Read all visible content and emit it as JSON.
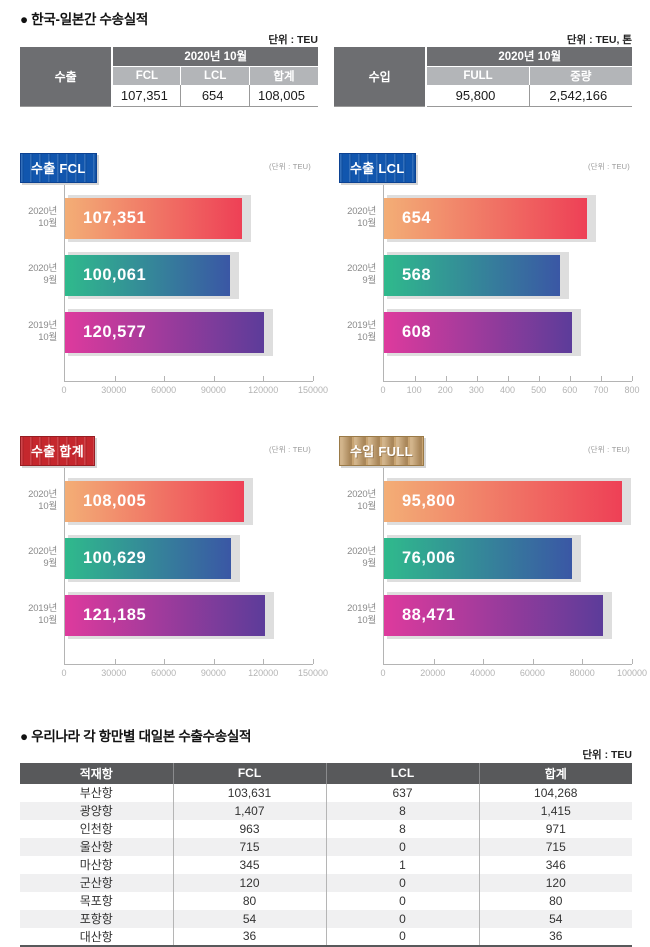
{
  "page": {
    "section1_title": "● 한국-일본간 수송실적",
    "section2_title": "● 우리나라 각 항만별 대일본 수출수송실적"
  },
  "summary_tables": {
    "export": {
      "unit": "단위 : TEU",
      "row_label": "수출",
      "period": "2020년 10월",
      "columns": [
        "FCL",
        "LCL",
        "합계"
      ],
      "values": [
        "107,351",
        "654",
        "108,005"
      ]
    },
    "import": {
      "unit": "단위 : TEU, 톤",
      "row_label": "수입",
      "period": "2020년 10월",
      "columns": [
        "FULL",
        "중량"
      ],
      "values": [
        "95,800",
        "2,542,166"
      ]
    }
  },
  "chart_data": [
    {
      "type": "bar",
      "title": "수출 FCL",
      "badge_style": "blue",
      "unit": "(단위 : TEU)",
      "orientation": "horizontal",
      "categories": [
        [
          "2020년",
          "10월"
        ],
        [
          "2020년",
          "9월"
        ],
        [
          "2019년",
          "10월"
        ]
      ],
      "values": [
        107351,
        100061,
        120577
      ],
      "value_labels": [
        "107,351",
        "100,061",
        "120,577"
      ],
      "xlim": [
        0,
        150000
      ],
      "ticks": [
        0,
        30000,
        60000,
        90000,
        120000,
        150000
      ]
    },
    {
      "type": "bar",
      "title": "수출 LCL",
      "badge_style": "blue",
      "unit": "(단위 : TEU)",
      "orientation": "horizontal",
      "categories": [
        [
          "2020년",
          "10월"
        ],
        [
          "2020년",
          "9월"
        ],
        [
          "2019년",
          "10월"
        ]
      ],
      "values": [
        654,
        568,
        608
      ],
      "value_labels": [
        "654",
        "568",
        "608"
      ],
      "xlim": [
        0,
        800
      ],
      "ticks": [
        0,
        100,
        200,
        300,
        400,
        500,
        600,
        700,
        800
      ]
    },
    {
      "type": "bar",
      "title": "수출 합계",
      "badge_style": "red",
      "unit": "(단위 : TEU)",
      "orientation": "horizontal",
      "categories": [
        [
          "2020년",
          "10월"
        ],
        [
          "2020년",
          "9월"
        ],
        [
          "2019년",
          "10월"
        ]
      ],
      "values": [
        108005,
        100629,
        121185
      ],
      "value_labels": [
        "108,005",
        "100,629",
        "121,185"
      ],
      "xlim": [
        0,
        150000
      ],
      "ticks": [
        0,
        30000,
        60000,
        90000,
        120000,
        150000
      ]
    },
    {
      "type": "bar",
      "title": "수입 FULL",
      "badge_style": "tan",
      "unit": "(단위 : TEU)",
      "orientation": "horizontal",
      "categories": [
        [
          "2020년",
          "10월"
        ],
        [
          "2020년",
          "9월"
        ],
        [
          "2019년",
          "10월"
        ]
      ],
      "values": [
        95800,
        76006,
        88471
      ],
      "value_labels": [
        "95,800",
        "76,006",
        "88,471"
      ],
      "xlim": [
        0,
        100000
      ],
      "ticks": [
        0,
        20000,
        40000,
        60000,
        80000,
        100000
      ]
    }
  ],
  "port_table": {
    "unit": "단위 : TEU",
    "columns": [
      "적재항",
      "FCL",
      "LCL",
      "합계"
    ],
    "rows": [
      [
        "부산항",
        "103,631",
        "637",
        "104,268"
      ],
      [
        "광양항",
        "1,407",
        "8",
        "1,415"
      ],
      [
        "인천항",
        "963",
        "8",
        "971"
      ],
      [
        "울산항",
        "715",
        "0",
        "715"
      ],
      [
        "마산항",
        "345",
        "1",
        "346"
      ],
      [
        "군산항",
        "120",
        "0",
        "120"
      ],
      [
        "목포항",
        "80",
        "0",
        "80"
      ],
      [
        "포항항",
        "54",
        "0",
        "54"
      ],
      [
        "대산항",
        "36",
        "0",
        "36"
      ]
    ]
  },
  "colors": {
    "bar_gradients": [
      [
        "#f3ae76",
        "#ee4056"
      ],
      [
        "#2fba8c",
        "#3a57a5"
      ],
      [
        "#de3a9d",
        "#5c3c9a"
      ]
    ],
    "bar_shadow": "#dedede",
    "badge_blue": "#1156ae",
    "badge_red": "#c5272d",
    "badge_tan": "#c8a472",
    "table_header_dark": "#58595b",
    "summary_header_dark": "#6d6e71",
    "summary_subheader_gray": "#b3b5b8",
    "alt_row": "#f0f0f1",
    "axis": "#b4b4b4"
  }
}
